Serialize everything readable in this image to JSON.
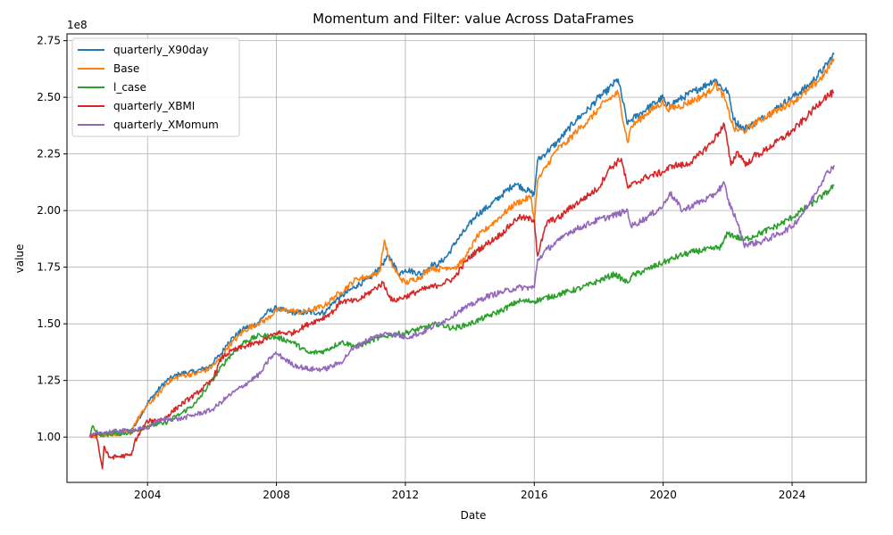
{
  "chart_data": {
    "type": "line",
    "title": "Momentum and Filter: value Across DataFrames",
    "xlabel": "Date",
    "ylabel": "value",
    "y_offset_label": "1e8",
    "xlim": [
      2001.5,
      2026.3
    ],
    "ylim": [
      0.8,
      2.78
    ],
    "x_ticks": [
      2004,
      2008,
      2012,
      2016,
      2020,
      2024
    ],
    "y_ticks": [
      1.0,
      1.25,
      1.5,
      1.75,
      2.0,
      2.25,
      2.5,
      2.75
    ],
    "y_tick_labels": [
      "1.00",
      "1.25",
      "1.50",
      "1.75",
      "2.00",
      "2.25",
      "2.50",
      "2.75"
    ],
    "grid": true,
    "legend_position": "upper-left",
    "series": [
      {
        "name": "quarterly_X90day",
        "color": "#1f77b4",
        "x": [
          2002.2,
          2002.5,
          2003.5,
          2003.6,
          2004.0,
          2004.4,
          2004.6,
          2005.0,
          2005.5,
          2005.9,
          2006.3,
          2006.5,
          2007.0,
          2007.4,
          2007.7,
          2008.0,
          2008.4,
          2008.8,
          2009.5,
          2009.8,
          2010.0,
          2010.5,
          2010.9,
          2011.2,
          2011.5,
          2011.8,
          2012.0,
          2012.5,
          2012.8,
          2013.0,
          2013.3,
          2013.6,
          2013.9,
          2014.2,
          2014.6,
          2015.0,
          2015.4,
          2015.9,
          2016.0,
          2016.1,
          2016.4,
          2016.7,
          2017.0,
          2017.3,
          2017.7,
          2018.0,
          2018.2,
          2018.6,
          2018.9,
          2019.0,
          2019.5,
          2020.0,
          2020.1,
          2020.5,
          2021.0,
          2021.4,
          2021.6,
          2021.9,
          2022.0,
          2022.2,
          2022.5,
          2023.0,
          2023.5,
          2024.0,
          2024.5,
          2025.0,
          2025.3
        ],
        "y": [
          1.0,
          1.01,
          1.03,
          1.05,
          1.15,
          1.22,
          1.25,
          1.28,
          1.29,
          1.31,
          1.37,
          1.42,
          1.48,
          1.5,
          1.55,
          1.57,
          1.55,
          1.55,
          1.55,
          1.6,
          1.62,
          1.67,
          1.7,
          1.75,
          1.8,
          1.72,
          1.74,
          1.72,
          1.76,
          1.76,
          1.8,
          1.87,
          1.92,
          1.98,
          2.02,
          2.07,
          2.12,
          2.08,
          2.07,
          2.22,
          2.26,
          2.3,
          2.35,
          2.4,
          2.45,
          2.5,
          2.52,
          2.58,
          2.38,
          2.4,
          2.45,
          2.5,
          2.46,
          2.49,
          2.53,
          2.56,
          2.58,
          2.53,
          2.53,
          2.4,
          2.36,
          2.4,
          2.45,
          2.5,
          2.55,
          2.63,
          2.69
        ]
      },
      {
        "name": "Base",
        "color": "#ff7f0e",
        "x": [
          2002.2,
          2002.5,
          2003.5,
          2003.6,
          2004.0,
          2004.4,
          2004.6,
          2005.0,
          2005.5,
          2005.9,
          2006.3,
          2006.5,
          2007.0,
          2007.4,
          2007.7,
          2008.0,
          2008.4,
          2008.8,
          2009.5,
          2009.8,
          2010.0,
          2010.5,
          2010.9,
          2011.2,
          2011.35,
          2011.5,
          2011.8,
          2012.0,
          2012.5,
          2012.8,
          2013.0,
          2013.3,
          2013.6,
          2013.9,
          2014.2,
          2014.6,
          2015.0,
          2015.4,
          2015.9,
          2016.0,
          2016.1,
          2016.4,
          2016.7,
          2017.0,
          2017.3,
          2017.7,
          2018.0,
          2018.2,
          2018.6,
          2018.9,
          2019.0,
          2019.5,
          2020.0,
          2020.1,
          2020.5,
          2021.0,
          2021.4,
          2021.6,
          2021.9,
          2022.0,
          2022.2,
          2022.5,
          2023.0,
          2023.5,
          2024.0,
          2024.5,
          2025.0,
          2025.3
        ],
        "y": [
          1.0,
          1.01,
          1.02,
          1.06,
          1.14,
          1.2,
          1.24,
          1.27,
          1.28,
          1.3,
          1.35,
          1.4,
          1.47,
          1.5,
          1.52,
          1.56,
          1.56,
          1.55,
          1.58,
          1.62,
          1.64,
          1.7,
          1.71,
          1.73,
          1.87,
          1.78,
          1.71,
          1.68,
          1.71,
          1.75,
          1.74,
          1.75,
          1.75,
          1.8,
          1.88,
          1.93,
          1.98,
          2.03,
          2.06,
          1.95,
          2.13,
          2.2,
          2.27,
          2.3,
          2.35,
          2.4,
          2.45,
          2.48,
          2.52,
          2.3,
          2.37,
          2.43,
          2.48,
          2.45,
          2.46,
          2.49,
          2.52,
          2.56,
          2.5,
          2.45,
          2.36,
          2.35,
          2.4,
          2.44,
          2.48,
          2.53,
          2.6,
          2.67
        ]
      },
      {
        "name": "l_case",
        "color": "#2ca02c",
        "x": [
          2002.2,
          2002.3,
          2002.5,
          2003.5,
          2004.0,
          2004.5,
          2005.0,
          2005.5,
          2006.0,
          2006.5,
          2007.0,
          2007.5,
          2008.0,
          2008.5,
          2009.0,
          2009.5,
          2010.0,
          2010.5,
          2011.0,
          2011.5,
          2012.0,
          2012.5,
          2013.0,
          2013.5,
          2014.0,
          2014.5,
          2015.0,
          2015.5,
          2016.0,
          2016.5,
          2017.0,
          2017.5,
          2018.0,
          2018.5,
          2018.9,
          2019.0,
          2019.5,
          2020.0,
          2020.5,
          2021.0,
          2021.5,
          2021.8,
          2022.0,
          2022.5,
          2023.0,
          2023.5,
          2024.0,
          2024.5,
          2025.0,
          2025.3
        ],
        "y": [
          1.0,
          1.05,
          1.01,
          1.02,
          1.05,
          1.06,
          1.1,
          1.15,
          1.25,
          1.35,
          1.42,
          1.45,
          1.44,
          1.42,
          1.37,
          1.38,
          1.42,
          1.4,
          1.43,
          1.45,
          1.46,
          1.48,
          1.5,
          1.48,
          1.5,
          1.53,
          1.56,
          1.6,
          1.6,
          1.62,
          1.64,
          1.66,
          1.69,
          1.72,
          1.68,
          1.71,
          1.74,
          1.77,
          1.8,
          1.82,
          1.83,
          1.84,
          1.9,
          1.87,
          1.9,
          1.93,
          1.97,
          2.02,
          2.07,
          2.11
        ]
      },
      {
        "name": "quarterly_XBMI",
        "color": "#d62728",
        "x": [
          2002.2,
          2002.4,
          2002.6,
          2002.65,
          2002.8,
          2003.5,
          2003.6,
          2004.0,
          2004.5,
          2005.0,
          2005.5,
          2006.0,
          2006.3,
          2006.6,
          2007.0,
          2007.5,
          2008.0,
          2008.5,
          2009.0,
          2009.5,
          2009.8,
          2010.0,
          2010.5,
          2011.0,
          2011.3,
          2011.6,
          2012.0,
          2012.5,
          2013.0,
          2013.5,
          2013.9,
          2014.2,
          2014.6,
          2015.0,
          2015.5,
          2016.0,
          2016.1,
          2016.4,
          2016.8,
          2017.0,
          2017.5,
          2018.0,
          2018.3,
          2018.7,
          2018.9,
          2019.0,
          2019.5,
          2020.0,
          2020.3,
          2020.7,
          2021.0,
          2021.5,
          2021.9,
          2022.1,
          2022.3,
          2022.6,
          2022.8,
          2023.0,
          2023.5,
          2024.0,
          2024.5,
          2025.0,
          2025.3
        ],
        "y": [
          1.0,
          1.02,
          0.86,
          0.96,
          0.91,
          0.92,
          0.98,
          1.07,
          1.08,
          1.14,
          1.19,
          1.25,
          1.35,
          1.38,
          1.4,
          1.42,
          1.46,
          1.46,
          1.5,
          1.53,
          1.56,
          1.6,
          1.6,
          1.65,
          1.68,
          1.6,
          1.62,
          1.65,
          1.67,
          1.7,
          1.78,
          1.82,
          1.86,
          1.9,
          1.97,
          1.96,
          1.8,
          1.95,
          1.97,
          2.0,
          2.05,
          2.1,
          2.18,
          2.23,
          2.1,
          2.11,
          2.15,
          2.17,
          2.2,
          2.2,
          2.23,
          2.3,
          2.38,
          2.2,
          2.26,
          2.2,
          2.24,
          2.25,
          2.3,
          2.35,
          2.42,
          2.5,
          2.52
        ]
      },
      {
        "name": "quarterly_XMomum",
        "color": "#9467bd",
        "x": [
          2002.2,
          2002.5,
          2003.5,
          2004.0,
          2004.3,
          2004.6,
          2005.0,
          2005.5,
          2006.0,
          2006.5,
          2007.0,
          2007.5,
          2007.8,
          2008.0,
          2008.5,
          2009.0,
          2009.5,
          2010.0,
          2010.3,
          2010.7,
          2011.0,
          2011.5,
          2012.0,
          2012.5,
          2013.0,
          2013.3,
          2013.7,
          2014.0,
          2014.5,
          2015.0,
          2015.5,
          2016.0,
          2016.1,
          2016.4,
          2016.8,
          2017.0,
          2017.5,
          2018.0,
          2018.5,
          2018.9,
          2019.0,
          2019.5,
          2020.0,
          2020.2,
          2020.6,
          2021.0,
          2021.5,
          2021.9,
          2022.0,
          2022.3,
          2022.5,
          2023.0,
          2023.5,
          2024.0,
          2024.5,
          2025.0,
          2025.3
        ],
        "y": [
          1.0,
          1.02,
          1.03,
          1.04,
          1.07,
          1.08,
          1.08,
          1.1,
          1.12,
          1.18,
          1.23,
          1.28,
          1.35,
          1.37,
          1.32,
          1.3,
          1.3,
          1.33,
          1.38,
          1.42,
          1.44,
          1.46,
          1.44,
          1.46,
          1.5,
          1.52,
          1.56,
          1.58,
          1.62,
          1.64,
          1.66,
          1.66,
          1.78,
          1.83,
          1.87,
          1.9,
          1.93,
          1.96,
          1.98,
          2.0,
          1.93,
          1.97,
          2.02,
          2.08,
          2.0,
          2.03,
          2.06,
          2.12,
          2.05,
          1.95,
          1.85,
          1.86,
          1.89,
          1.93,
          2.02,
          2.15,
          2.2
        ]
      }
    ]
  }
}
